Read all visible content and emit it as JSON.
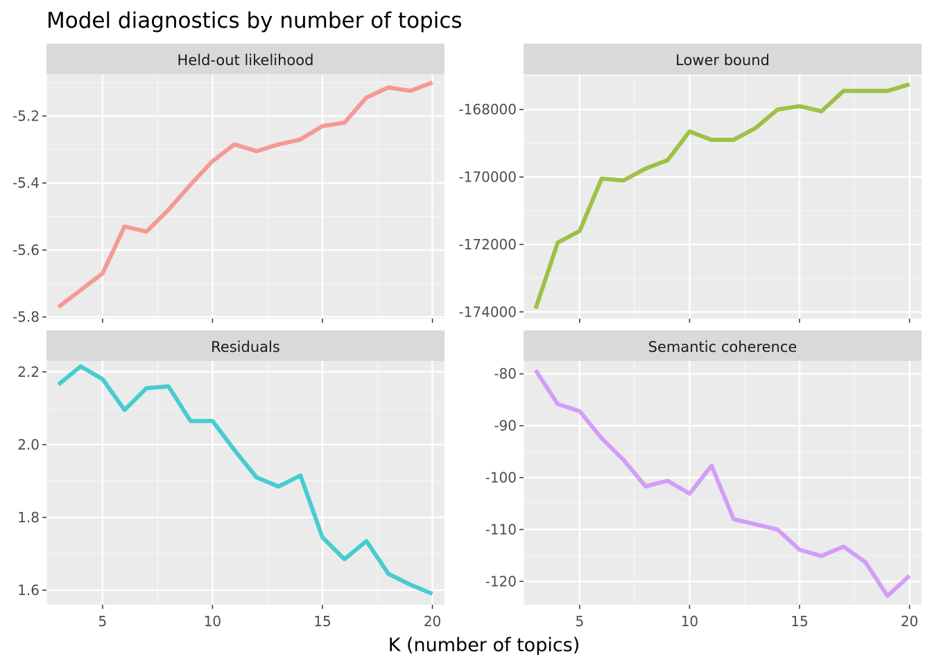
{
  "chart_data": {
    "type": "line",
    "title": "Model diagnostics by number of topics",
    "xlabel": "K (number of topics)",
    "ylabel": "",
    "x": [
      3,
      4,
      5,
      6,
      7,
      8,
      9,
      10,
      11,
      12,
      13,
      14,
      15,
      16,
      17,
      18,
      19,
      20
    ],
    "xticks": [
      5,
      10,
      15,
      20
    ],
    "xlim": [
      2.45,
      20.55
    ],
    "grid": true,
    "legend": "none",
    "panels": [
      {
        "name": "Held-out likelihood",
        "color": "#F8766D",
        "ylim": [
          -5.805,
          -5.075
        ],
        "yticks": [
          -5.8,
          -5.6,
          -5.4,
          -5.2
        ],
        "ytick_labels": [
          "-5.8",
          "-5.6",
          "-5.4",
          "-5.2"
        ],
        "values": [
          -5.77,
          -5.72,
          -5.67,
          -5.53,
          -5.545,
          -5.48,
          -5.405,
          -5.335,
          -5.285,
          -5.305,
          -5.285,
          -5.27,
          -5.23,
          -5.22,
          -5.145,
          -5.115,
          -5.125,
          -5.1
        ]
      },
      {
        "name": "Lower bound",
        "color": "#7CAE00",
        "ylim": [
          -174200,
          -166950
        ],
        "yticks": [
          -174000,
          -172000,
          -170000,
          -168000
        ],
        "ytick_labels": [
          "-174000",
          "-172000",
          "-170000",
          "-168000"
        ],
        "values": [
          -173900,
          -171950,
          -171600,
          -170050,
          -170100,
          -169750,
          -169500,
          -168650,
          -168900,
          -168900,
          -168550,
          -168000,
          -167900,
          -168050,
          -167450,
          -167450,
          -167450,
          -167250
        ]
      },
      {
        "name": "Residuals",
        "color": "#00BFC4",
        "ylim": [
          1.56,
          2.23
        ],
        "yticks": [
          1.6,
          1.8,
          2.0,
          2.2
        ],
        "ytick_labels": [
          "1.6",
          "1.8",
          "2.0",
          "2.2"
        ],
        "values": [
          2.165,
          2.215,
          2.18,
          2.095,
          2.155,
          2.16,
          2.065,
          2.065,
          1.985,
          1.91,
          1.885,
          1.915,
          1.745,
          1.685,
          1.735,
          1.645,
          1.615,
          1.59
        ]
      },
      {
        "name": "Semantic coherence",
        "color": "#C77CFF",
        "ylim": [
          -124.5,
          -77.5
        ],
        "yticks": [
          -120,
          -110,
          -100,
          -90,
          -80
        ],
        "ytick_labels": [
          "-120",
          "-110",
          "-100",
          "-90",
          "-80"
        ],
        "values": [
          -79.3,
          -85.8,
          -87.2,
          -92.4,
          -96.6,
          -101.7,
          -100.6,
          -103.1,
          -97.7,
          -108,
          -109,
          -110,
          -113.9,
          -115.1,
          -113.3,
          -116.3,
          -122.8,
          -118.9
        ]
      }
    ]
  }
}
